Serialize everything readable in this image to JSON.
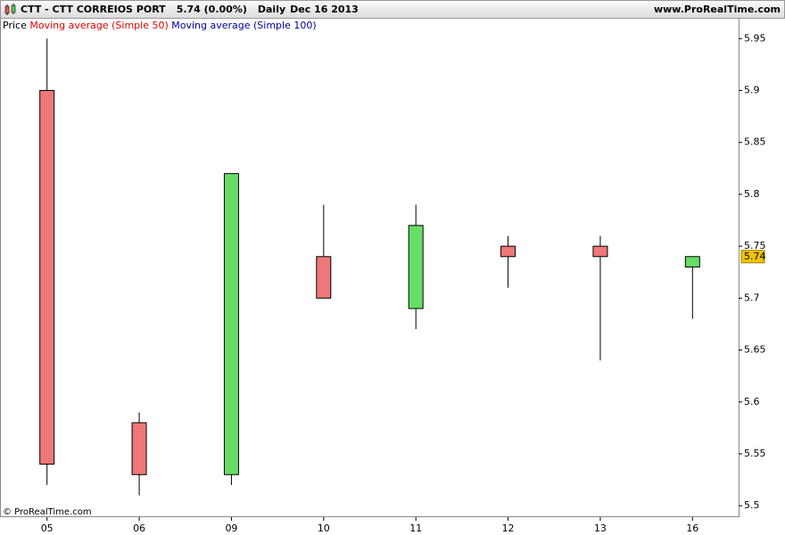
{
  "header": {
    "symbol": "CTT - CTT CORREIOS PORT",
    "quote": "5.74 (0.00%)",
    "period": "Daily",
    "date": "Dec 16 2013",
    "site": "www.ProRealTime.com"
  },
  "legend": {
    "price": "Price",
    "ma50": "Moving average (Simple 50)",
    "ma100": "Moving average (Simple 100)",
    "ma50_color": "#e00000",
    "ma100_color": "#00009a"
  },
  "footer": "© ProRealTime.com",
  "chart_data": {
    "type": "candlestick",
    "categories": [
      "05",
      "06",
      "09",
      "10",
      "11",
      "12",
      "13",
      "16"
    ],
    "series": [
      {
        "name": "Price",
        "up_color": "#66dd66",
        "down_color": "#ee7777",
        "open": [
          5.9,
          5.58,
          5.53,
          5.74,
          5.69,
          5.75,
          5.75,
          5.73
        ],
        "high": [
          5.95,
          5.59,
          5.82,
          5.79,
          5.79,
          5.76,
          5.76,
          5.74
        ],
        "low": [
          5.52,
          5.51,
          5.52,
          5.7,
          5.67,
          5.71,
          5.64,
          5.68
        ],
        "close": [
          5.54,
          5.53,
          5.82,
          5.7,
          5.77,
          5.74,
          5.74,
          5.74
        ]
      }
    ],
    "last_value": 5.74,
    "last_color": "#f2c200",
    "ylim": [
      5.489,
      5.97
    ],
    "yticks": [
      5.5,
      5.55,
      5.6,
      5.65,
      5.7,
      5.75,
      5.8,
      5.85,
      5.9,
      5.95
    ]
  }
}
